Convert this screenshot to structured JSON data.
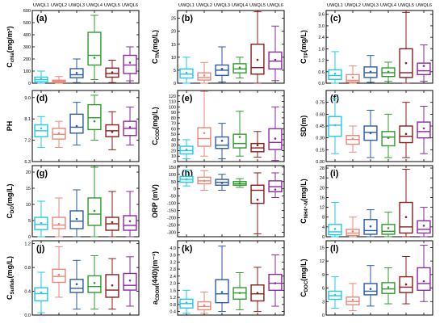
{
  "groups": [
    "UWQL1",
    "UWQL2",
    "UWQL3",
    "UWQL4",
    "UWQL5",
    "UWQL6"
  ],
  "colors": [
    "#22c8e8",
    "#e8877a",
    "#2a5aa8",
    "#2f9a2f",
    "#8a1c1c",
    "#8a2a9e"
  ],
  "chart_data": [
    {
      "type": "box",
      "label": "(a)",
      "ylabel": "C",
      "ylabel_sub": "chla",
      "ylabel_unit": "(mg/m³)",
      "ylim": [
        0,
        600
      ],
      "yticks": [
        "0",
        "100",
        "200",
        "300",
        "400",
        "500",
        "600"
      ],
      "boxes": [
        {
          "min": 0,
          "q1": 12,
          "median": 30,
          "q3": 50,
          "max": 100,
          "mean": 35
        },
        {
          "min": 0,
          "q1": 5,
          "median": 15,
          "q3": 25,
          "max": 55,
          "mean": 20
        },
        {
          "min": 5,
          "q1": 45,
          "median": 70,
          "q3": 120,
          "max": 200,
          "mean": 85
        },
        {
          "min": 30,
          "q1": 150,
          "median": 230,
          "q3": 420,
          "max": 560,
          "mean": 210
        },
        {
          "min": 5,
          "q1": 50,
          "median": 80,
          "q3": 125,
          "max": 190,
          "mean": 90
        },
        {
          "min": 20,
          "q1": 80,
          "median": 150,
          "q3": 230,
          "max": 300,
          "mean": 170
        }
      ]
    },
    {
      "type": "box",
      "label": "(b)",
      "ylabel": "C",
      "ylabel_sub": "TN",
      "ylabel_unit": "(mg/L)",
      "ylim": [
        0,
        28
      ],
      "yticks": [
        "0",
        "5",
        "10",
        "15",
        "20",
        "25"
      ],
      "boxes": [
        {
          "min": 0,
          "q1": 2,
          "median": 3.5,
          "q3": 5.5,
          "max": 10,
          "mean": 4
        },
        {
          "min": 0,
          "q1": 1.2,
          "median": 2.2,
          "q3": 4,
          "max": 8,
          "mean": 3
        },
        {
          "min": 0.5,
          "q1": 3,
          "median": 5,
          "q3": 7,
          "max": 14,
          "mean": 5.5
        },
        {
          "min": 2,
          "q1": 4,
          "median": 5.5,
          "q3": 7.5,
          "max": 10,
          "mean": 6
        },
        {
          "min": 0,
          "q1": 3.5,
          "median": 6,
          "q3": 15,
          "max": 27.5,
          "mean": 9
        },
        {
          "min": 1,
          "q1": 5.5,
          "median": 8.5,
          "q3": 12,
          "max": 22,
          "mean": 9
        }
      ]
    },
    {
      "type": "box",
      "label": "(c)",
      "ylabel": "C",
      "ylabel_sub": "TP",
      "ylabel_unit": "(mg/L)",
      "ylim": [
        0,
        3.8
      ],
      "yticks": [
        "0.0",
        "0.6",
        "1.2",
        "1.8",
        "2.4",
        "3.0",
        "3.6"
      ],
      "boxes": [
        {
          "min": 0,
          "q1": 0.2,
          "median": 0.4,
          "q3": 0.7,
          "max": 1.65,
          "mean": 0.5
        },
        {
          "min": 0,
          "q1": 0.06,
          "median": 0.15,
          "q3": 0.45,
          "max": 0.9,
          "mean": 0.3
        },
        {
          "min": 0.05,
          "q1": 0.3,
          "median": 0.55,
          "q3": 0.85,
          "max": 1.45,
          "mean": 0.6
        },
        {
          "min": 0.1,
          "q1": 0.35,
          "median": 0.55,
          "q3": 0.8,
          "max": 1.1,
          "mean": 0.6
        },
        {
          "min": 0,
          "q1": 0.3,
          "median": 0.55,
          "q3": 1.8,
          "max": 3.7,
          "mean": 1.05
        },
        {
          "min": 0.1,
          "q1": 0.45,
          "median": 0.65,
          "q3": 1.05,
          "max": 2.0,
          "mean": 0.9
        }
      ]
    },
    {
      "type": "box",
      "label": "(d)",
      "ylabel": "PH",
      "ylabel_sub": "",
      "ylabel_unit": "",
      "ylim": [
        6.3,
        9.3
      ],
      "yticks": [
        "6.3",
        "7.2",
        "8.1",
        "9.0"
      ],
      "boxes": [
        {
          "min": 6.9,
          "q1": 7.35,
          "median": 7.6,
          "q3": 7.85,
          "max": 8.2,
          "mean": 7.7
        },
        {
          "min": 6.9,
          "q1": 7.25,
          "median": 7.45,
          "q3": 7.7,
          "max": 8.0,
          "mean": 7.5
        },
        {
          "min": 7.0,
          "q1": 7.5,
          "median": 7.75,
          "q3": 8.3,
          "max": 8.8,
          "mean": 7.8
        },
        {
          "min": 7.2,
          "q1": 7.65,
          "median": 8.15,
          "q3": 8.7,
          "max": 9.1,
          "mean": 8.0
        },
        {
          "min": 6.8,
          "q1": 7.35,
          "median": 7.6,
          "q3": 7.85,
          "max": 8.4,
          "mean": 7.55
        },
        {
          "min": 7.0,
          "q1": 7.4,
          "median": 7.7,
          "q3": 8.0,
          "max": 8.6,
          "mean": 7.75
        }
      ]
    },
    {
      "type": "box",
      "label": "(e)",
      "ylabel": "C",
      "ylabel_sub": "COD",
      "ylabel_unit": "(mg/L)",
      "ylim": [
        0,
        130
      ],
      "yticks": [
        "0",
        "10",
        "20",
        "30",
        "40",
        "50",
        "60",
        "70",
        "80",
        "90",
        "100",
        "110",
        "120"
      ],
      "boxes": [
        {
          "min": 5,
          "q1": 14,
          "median": 20,
          "q3": 28,
          "max": 40,
          "mean": 22
        },
        {
          "min": 10,
          "q1": 28,
          "median": 42,
          "q3": 62,
          "max": 128,
          "mean": 52
        },
        {
          "min": 5,
          "q1": 24,
          "median": 30,
          "q3": 45,
          "max": 70,
          "mean": 38
        },
        {
          "min": 10,
          "q1": 25,
          "median": 33,
          "q3": 50,
          "max": 92,
          "mean": 45
        },
        {
          "min": 8,
          "q1": 18,
          "median": 25,
          "q3": 33,
          "max": 55,
          "mean": 30
        },
        {
          "min": 2,
          "q1": 22,
          "median": 35,
          "q3": 60,
          "max": 100,
          "mean": 42
        }
      ]
    },
    {
      "type": "box",
      "label": "(f)",
      "ylabel": "SD(m)",
      "ylabel_sub": "",
      "ylabel_unit": "",
      "ylim": [
        0,
        0.9
      ],
      "yticks": [
        "0.00",
        "0.15",
        "0.30",
        "0.45",
        "0.60",
        "0.75"
      ],
      "boxes": [
        {
          "min": 0.1,
          "q1": 0.32,
          "median": 0.46,
          "q3": 0.57,
          "max": 0.8,
          "mean": 0.46
        },
        {
          "min": 0.12,
          "q1": 0.22,
          "median": 0.28,
          "q3": 0.33,
          "max": 0.45,
          "mean": 0.29
        },
        {
          "min": 0.05,
          "q1": 0.27,
          "median": 0.37,
          "q3": 0.45,
          "max": 0.65,
          "mean": 0.36
        },
        {
          "min": 0.05,
          "q1": 0.2,
          "median": 0.31,
          "q3": 0.38,
          "max": 0.6,
          "mean": 0.3
        },
        {
          "min": 0.05,
          "q1": 0.24,
          "median": 0.32,
          "q3": 0.45,
          "max": 0.75,
          "mean": 0.35
        },
        {
          "min": 0.1,
          "q1": 0.3,
          "median": 0.38,
          "q3": 0.5,
          "max": 0.7,
          "mean": 0.42
        }
      ]
    },
    {
      "type": "box",
      "label": "(g)",
      "ylabel": "C",
      "ylabel_sub": "DO",
      "ylabel_unit": "(mg/L)",
      "ylim": [
        0,
        22
      ],
      "yticks": [
        "0",
        "5",
        "10",
        "15",
        "20"
      ],
      "boxes": [
        {
          "min": 0,
          "q1": 2.2,
          "median": 3.8,
          "q3": 6,
          "max": 11,
          "mean": 4.2
        },
        {
          "min": 0,
          "q1": 2.5,
          "median": 3.6,
          "q3": 6,
          "max": 12,
          "mean": 4
        },
        {
          "min": 0,
          "q1": 2.5,
          "median": 4.8,
          "q3": 8,
          "max": 14.5,
          "mean": 5.5
        },
        {
          "min": 0,
          "q1": 3.5,
          "median": 7,
          "q3": 12,
          "max": 21.5,
          "mean": 8
        },
        {
          "min": 0,
          "q1": 2,
          "median": 4,
          "q3": 6,
          "max": 14,
          "mean": 4.5
        },
        {
          "min": 0,
          "q1": 2,
          "median": 3.5,
          "q3": 6.5,
          "max": 14,
          "mean": 4.8
        }
      ]
    },
    {
      "type": "box",
      "label": "(h)",
      "ylabel": "ORP (mV)",
      "ylabel_sub": "",
      "ylabel_unit": "",
      "ylim": [
        -330,
        160
      ],
      "yticks": [
        "-300",
        "-250",
        "-200",
        "-150",
        "-100",
        "-50",
        "0",
        "50",
        "100",
        "150"
      ],
      "boxes": [
        {
          "min": 20,
          "q1": 45,
          "median": 65,
          "q3": 85,
          "max": 130,
          "mean": 65
        },
        {
          "min": -10,
          "q1": 35,
          "median": 55,
          "q3": 80,
          "max": 125,
          "mean": 55
        },
        {
          "min": -10,
          "q1": 25,
          "median": 45,
          "q3": 65,
          "max": 100,
          "mean": 40
        },
        {
          "min": 10,
          "q1": 25,
          "median": 35,
          "q3": 50,
          "max": 70,
          "mean": 38
        },
        {
          "min": -310,
          "q1": -100,
          "median": -10,
          "q3": 25,
          "max": 110,
          "mean": -75
        },
        {
          "min": -60,
          "q1": -20,
          "median": 15,
          "q3": 55,
          "max": 110,
          "mean": -5
        }
      ]
    },
    {
      "type": "box",
      "label": "(i)",
      "ylabel": "C",
      "ylabel_sub": "NH4⁺-N",
      "ylabel_unit": "(mg/L)",
      "ylim": [
        0,
        29
      ],
      "yticks": [
        "0",
        "4",
        "8",
        "12",
        "16",
        "20",
        "24",
        "28"
      ],
      "boxes": [
        {
          "min": 0,
          "q1": 0.8,
          "median": 2,
          "q3": 5,
          "max": 14,
          "mean": 3.2
        },
        {
          "min": 0,
          "q1": 0.5,
          "median": 1.5,
          "q3": 3,
          "max": 8,
          "mean": 2.2
        },
        {
          "min": 0,
          "q1": 1,
          "median": 2.5,
          "q3": 7,
          "max": 11,
          "mean": 4.2
        },
        {
          "min": 0,
          "q1": 1,
          "median": 2.2,
          "q3": 5,
          "max": 10,
          "mean": 3.5
        },
        {
          "min": 0,
          "q1": 1.5,
          "median": 4,
          "q3": 14,
          "max": 27.5,
          "mean": 8
        },
        {
          "min": 0,
          "q1": 1.5,
          "median": 3,
          "q3": 6.5,
          "max": 12,
          "mean": 4.5
        }
      ]
    },
    {
      "type": "box",
      "label": "(j)",
      "ylabel": "C",
      "ylabel_sub": "Sulfide",
      "ylabel_unit": "(mg/L)",
      "ylim": [
        0,
        1.25
      ],
      "yticks": [
        "0.0",
        "0.4",
        "0.8",
        "1.2"
      ],
      "boxes": [
        {
          "min": 0.04,
          "q1": 0.24,
          "median": 0.36,
          "q3": 0.46,
          "max": 0.72,
          "mean": 0.38
        },
        {
          "min": 0.3,
          "q1": 0.55,
          "median": 0.65,
          "q3": 0.77,
          "max": 1.15,
          "mean": 0.68
        },
        {
          "min": 0.1,
          "q1": 0.38,
          "median": 0.45,
          "q3": 0.6,
          "max": 0.92,
          "mean": 0.52
        },
        {
          "min": 0.1,
          "q1": 0.38,
          "median": 0.48,
          "q3": 0.66,
          "max": 1.0,
          "mean": 0.54
        },
        {
          "min": 0.1,
          "q1": 0.3,
          "median": 0.42,
          "q3": 0.68,
          "max": 0.95,
          "mean": 0.5
        },
        {
          "min": 0.15,
          "q1": 0.42,
          "median": 0.5,
          "q3": 0.7,
          "max": 0.98,
          "mean": 0.58
        }
      ]
    },
    {
      "type": "box",
      "label": "(k)",
      "ylabel": "a",
      "ylabel_sub": "CDOM",
      "ylabel_unit": "(440)(m⁻¹)",
      "ylim": [
        0.2,
        4.4
      ],
      "yticks": [
        "0.4",
        "0.8",
        "1.2",
        "1.6",
        "2.0",
        "2.4",
        "2.8",
        "3.2",
        "3.6",
        "4.0"
      ],
      "boxes": [
        {
          "min": 0.3,
          "q1": 0.6,
          "median": 0.85,
          "q3": 1.1,
          "max": 1.6,
          "mean": 0.9
        },
        {
          "min": 0.3,
          "q1": 0.5,
          "median": 0.68,
          "q3": 0.95,
          "max": 1.5,
          "mean": 0.75
        },
        {
          "min": 0.4,
          "q1": 0.9,
          "median": 1.4,
          "q3": 2.2,
          "max": 4.1,
          "mean": 1.5
        },
        {
          "min": 0.5,
          "q1": 1.1,
          "median": 1.45,
          "q3": 1.75,
          "max": 2.6,
          "mean": 1.45
        },
        {
          "min": 0.4,
          "q1": 1.0,
          "median": 1.4,
          "q3": 1.9,
          "max": 2.9,
          "mean": 1.45
        },
        {
          "min": 0.7,
          "q1": 1.6,
          "median": 2.0,
          "q3": 2.5,
          "max": 3.6,
          "mean": 2.0
        }
      ]
    },
    {
      "type": "box",
      "label": "(l)",
      "ylabel": "C",
      "ylabel_sub": "DOC",
      "ylabel_unit": "(mg/L)",
      "ylim": [
        0,
        16.5
      ],
      "yticks": [
        "0",
        "3",
        "6",
        "9",
        "12",
        "15"
      ],
      "boxes": [
        {
          "min": 1.5,
          "q1": 3.5,
          "median": 4.3,
          "q3": 5.3,
          "max": 8.5,
          "mean": 4.5
        },
        {
          "min": 1.0,
          "q1": 2.3,
          "median": 3,
          "q3": 4,
          "max": 7,
          "mean": 3.4
        },
        {
          "min": 2,
          "q1": 4.5,
          "median": 5.3,
          "q3": 7,
          "max": 11,
          "mean": 5.8
        },
        {
          "min": 2.5,
          "q1": 4.8,
          "median": 5.8,
          "q3": 7.2,
          "max": 10.5,
          "mean": 6.2
        },
        {
          "min": 2.5,
          "q1": 5,
          "median": 6.2,
          "q3": 8.5,
          "max": 13,
          "mean": 6.8
        },
        {
          "min": 3,
          "q1": 5.5,
          "median": 7,
          "q3": 10.5,
          "max": 15.5,
          "mean": 7.5
        }
      ]
    }
  ]
}
